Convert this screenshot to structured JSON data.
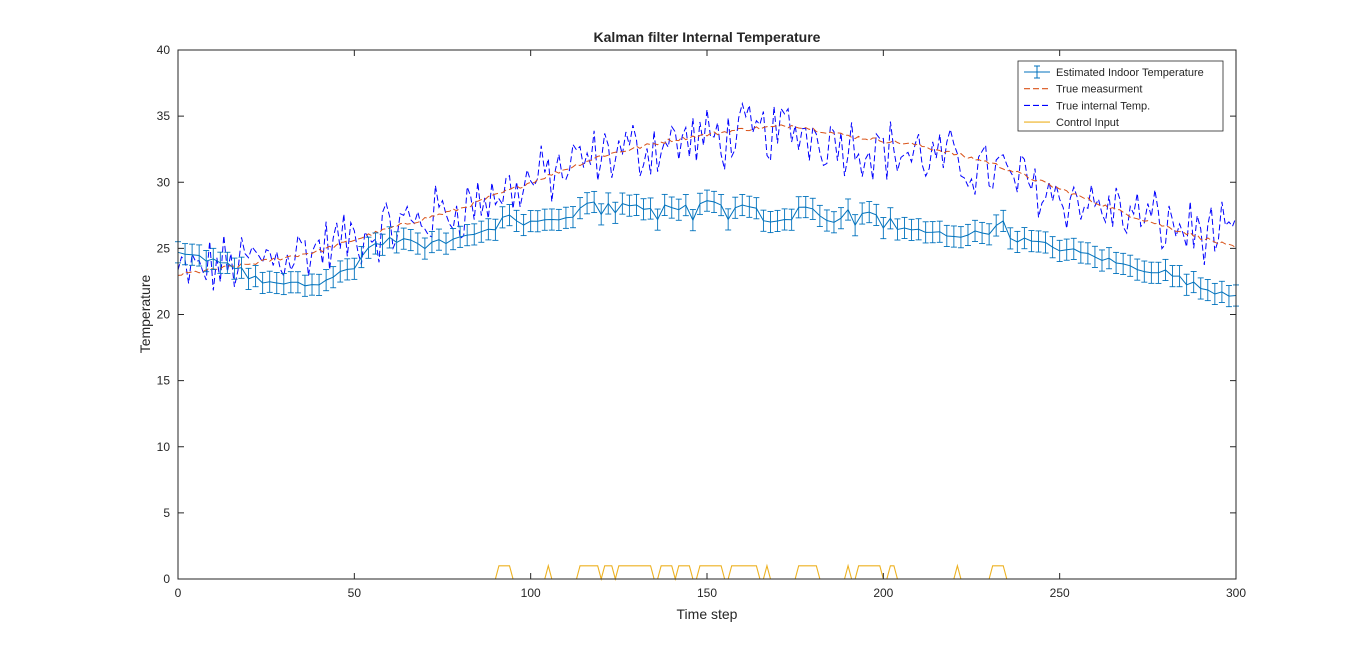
{
  "chart_data": {
    "type": "line",
    "title": "Kalman filter Internal Temperature",
    "xlabel": "Time step",
    "ylabel": "Temperature",
    "xlim": [
      0,
      300
    ],
    "ylim": [
      0,
      40
    ],
    "xticks": [
      0,
      50,
      100,
      150,
      200,
      250,
      300
    ],
    "yticks": [
      0,
      5,
      10,
      15,
      20,
      25,
      30,
      35,
      40
    ],
    "grid": false,
    "legend_position": "top-right",
    "series": [
      {
        "name": "Estimated Indoor Temperature",
        "style": "errorbar",
        "color": "#0072BD",
        "error": 0.8,
        "key_points": [
          [
            0,
            24.5
          ],
          [
            10,
            24.2
          ],
          [
            18,
            23.5
          ],
          [
            20,
            22.8
          ],
          [
            30,
            22.2
          ],
          [
            40,
            22.3
          ],
          [
            50,
            23.5
          ],
          [
            53,
            25.0
          ],
          [
            60,
            25.7
          ],
          [
            70,
            25.2
          ],
          [
            80,
            25.8
          ],
          [
            90,
            26.6
          ],
          [
            100,
            27.0
          ],
          [
            110,
            27.2
          ],
          [
            120,
            27.6
          ],
          [
            130,
            27.3
          ],
          [
            140,
            27.2
          ],
          [
            150,
            27.5
          ],
          [
            160,
            27.2
          ],
          [
            170,
            27.0
          ],
          [
            180,
            27.3
          ],
          [
            190,
            27.0
          ],
          [
            200,
            26.5
          ],
          [
            210,
            26.3
          ],
          [
            220,
            26.0
          ],
          [
            230,
            26.2
          ],
          [
            240,
            25.6
          ],
          [
            250,
            25.0
          ],
          [
            260,
            24.4
          ],
          [
            270,
            23.6
          ],
          [
            280,
            23.2
          ],
          [
            290,
            22.0
          ],
          [
            300,
            21.5
          ]
        ]
      },
      {
        "name": "True measurment",
        "style": "dashed",
        "color": "#D95319",
        "key_points": [
          [
            0,
            23.0
          ],
          [
            20,
            23.8
          ],
          [
            40,
            24.8
          ],
          [
            60,
            26.5
          ],
          [
            80,
            28.0
          ],
          [
            100,
            30.0
          ],
          [
            120,
            32.0
          ],
          [
            140,
            33.2
          ],
          [
            160,
            34.0
          ],
          [
            175,
            34.3
          ],
          [
            190,
            33.5
          ],
          [
            210,
            32.8
          ],
          [
            230,
            31.5
          ],
          [
            250,
            29.5
          ],
          [
            270,
            27.5
          ],
          [
            300,
            25.0
          ]
        ]
      },
      {
        "name": "True internal Temp.",
        "style": "dashed",
        "color": "#0000FF",
        "key_points": [
          [
            0,
            23.0
          ],
          [
            20,
            24.0
          ],
          [
            40,
            25.0
          ],
          [
            60,
            26.5
          ],
          [
            80,
            28.0
          ],
          [
            100,
            30.0
          ],
          [
            120,
            32.0
          ],
          [
            140,
            33.0
          ],
          [
            160,
            33.5
          ],
          [
            175,
            34.0
          ],
          [
            190,
            33.0
          ],
          [
            210,
            32.0
          ],
          [
            230,
            31.0
          ],
          [
            250,
            29.0
          ],
          [
            270,
            27.5
          ],
          [
            300,
            25.5
          ]
        ]
      },
      {
        "name": "Control Input",
        "style": "solid",
        "color": "#EDB120",
        "pulse_height": 1,
        "pulses": [
          [
            91,
            94
          ],
          [
            105,
            105
          ],
          [
            114,
            119
          ],
          [
            121,
            123
          ],
          [
            125,
            134
          ],
          [
            137,
            140
          ],
          [
            142,
            145
          ],
          [
            148,
            154
          ],
          [
            157,
            164
          ],
          [
            167,
            167
          ],
          [
            176,
            181
          ],
          [
            190,
            190
          ],
          [
            193,
            199
          ],
          [
            202,
            203
          ],
          [
            221,
            221
          ],
          [
            231,
            234
          ]
        ]
      }
    ]
  }
}
